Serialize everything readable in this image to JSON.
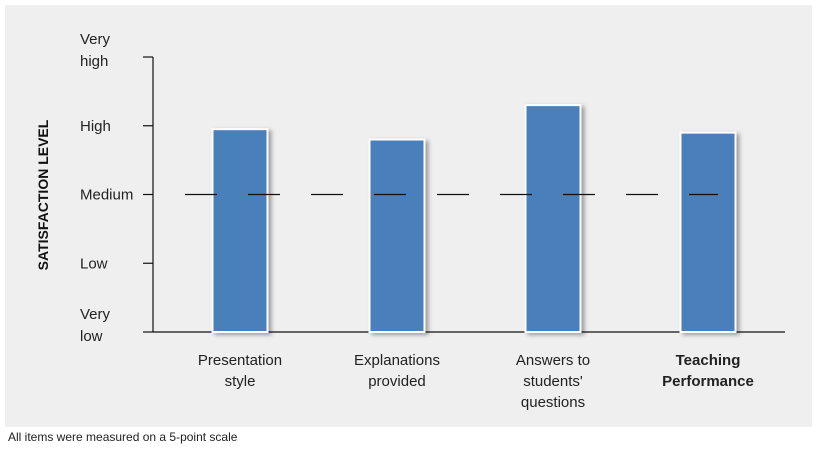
{
  "chart_data": {
    "type": "bar",
    "categories": [
      {
        "lines": [
          "Presentation",
          "style"
        ],
        "bold": false
      },
      {
        "lines": [
          "Explanations",
          "provided"
        ],
        "bold": false
      },
      {
        "lines": [
          "Answers to",
          "students'",
          "questions"
        ],
        "bold": false
      },
      {
        "lines": [
          "Teaching",
          "Performance"
        ],
        "bold": true
      }
    ],
    "values": [
      3.95,
      3.8,
      4.3,
      3.9
    ],
    "reference_line": {
      "value": 3,
      "style": "dashed"
    },
    "ylabel": "SATISFACTION LEVEL",
    "ylim": [
      1,
      5
    ],
    "y_ticks": [
      {
        "value": 1,
        "lines": [
          "Very",
          "low"
        ]
      },
      {
        "value": 2,
        "lines": [
          "Low"
        ]
      },
      {
        "value": 3,
        "lines": [
          "Medium"
        ]
      },
      {
        "value": 4,
        "lines": [
          "High"
        ]
      },
      {
        "value": 5,
        "lines": [
          "Very",
          "high"
        ]
      }
    ],
    "grid": false,
    "colors": {
      "bar": "#4a7fbb",
      "panel": "#efefef",
      "axis": "#111111"
    }
  },
  "footnote": "All items were measured on a 5-point scale"
}
